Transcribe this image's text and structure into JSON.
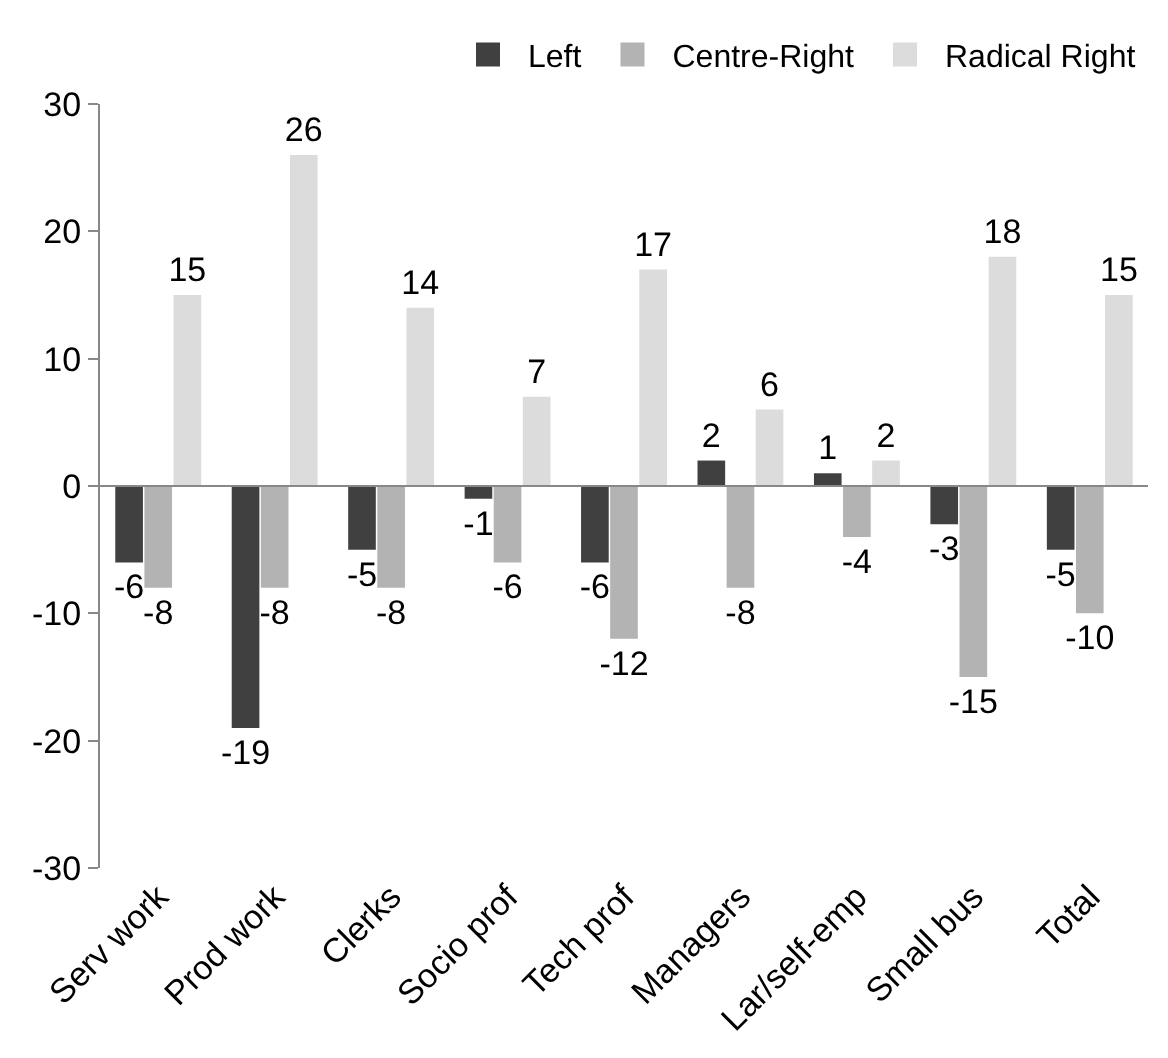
{
  "chart_data": {
    "type": "bar",
    "categories": [
      "Serv work",
      "Prod work",
      "Clerks",
      "Socio prof",
      "Tech prof",
      "Managers",
      "Lar/self-emp",
      "Small bus",
      "Total"
    ],
    "series": [
      {
        "name": "Left",
        "color": "#404040",
        "values": [
          -6,
          -19,
          -5,
          -1,
          -6,
          2,
          1,
          -3,
          -5
        ]
      },
      {
        "name": "Centre-Right",
        "color": "#b3b3b3",
        "values": [
          -8,
          -8,
          -8,
          -6,
          -12,
          -8,
          -4,
          -15,
          -10
        ]
      },
      {
        "name": "Radical Right",
        "color": "#dcdcdc",
        "values": [
          15,
          26,
          14,
          7,
          17,
          6,
          2,
          18,
          15
        ]
      }
    ],
    "ylim": [
      -30,
      30
    ],
    "yticks": [
      -30,
      -20,
      -10,
      0,
      10,
      20,
      30
    ],
    "grid": false,
    "ref_lines": [
      {
        "axis": "y",
        "value": 0,
        "color": "#888888"
      }
    ],
    "legend": "top right",
    "data_labels": true
  }
}
